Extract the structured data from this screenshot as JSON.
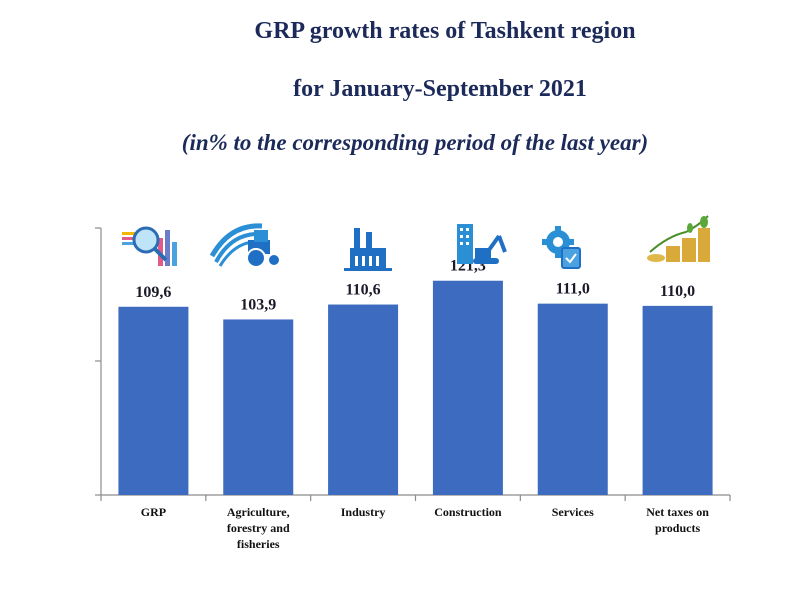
{
  "chart_data": {
    "type": "bar",
    "title": "GRP growth rates of Tashkent region",
    "subtitle": "for January-September 2021",
    "note": "(in% to the corresponding period of the last year)",
    "categories": [
      [
        "GRP"
      ],
      [
        "Agriculture,",
        "forestry and",
        "fisheries"
      ],
      [
        "Industry"
      ],
      [
        "Construction"
      ],
      [
        "Services"
      ],
      [
        "Net taxes on",
        "products"
      ]
    ],
    "values": [
      109.6,
      103.9,
      110.6,
      121.3,
      111.0,
      110.0
    ],
    "value_labels": [
      "109,6",
      "103,9",
      "110,6",
      "121,3",
      "111,0",
      "110,0"
    ],
    "icons": [
      "chart-magnifier-icon",
      "tractor-field-icon",
      "factory-icon",
      "excavator-building-icon",
      "gear-clipboard-icon",
      "coins-growth-icon"
    ],
    "ylim": [
      25,
      145
    ],
    "colors": {
      "bar": "#3d6bbf",
      "title": "#1c2a5a"
    }
  }
}
